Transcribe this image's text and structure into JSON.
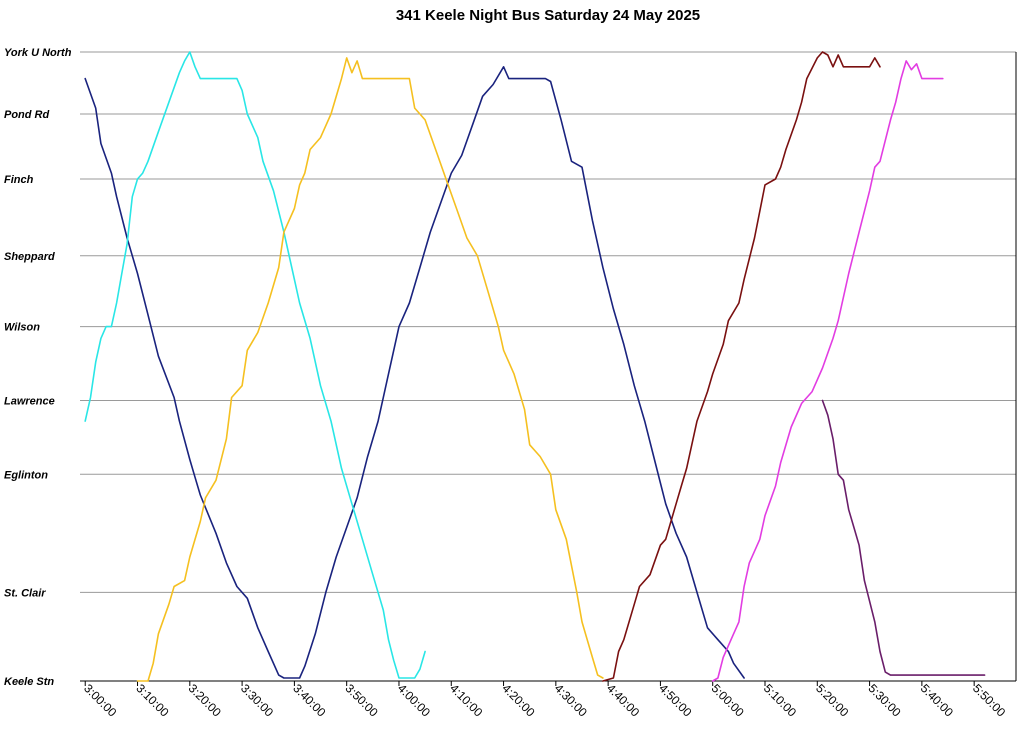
{
  "chart_data": {
    "type": "line",
    "title": "341 Keele Night Bus Saturday 24 May 2025",
    "xlabel": "",
    "ylabel": "",
    "x_unit": "time of day (H:MM:SS)",
    "xlim": [
      "2:59:00",
      "5:58:00"
    ],
    "x_ticks": [
      "3:00:00",
      "3:10:00",
      "3:20:00",
      "3:30:00",
      "3:40:00",
      "3:50:00",
      "4:00:00",
      "4:10:00",
      "4:20:00",
      "4:30:00",
      "4:40:00",
      "4:50:00",
      "5:00:00",
      "5:10:00",
      "5:20:00",
      "5:30:00",
      "5:40:00",
      "5:50:00"
    ],
    "stops": [
      {
        "name": "Keele Stn",
        "pos": 0
      },
      {
        "name": "St. Clair",
        "pos": 1.5
      },
      {
        "name": "Eglinton",
        "pos": 3.5
      },
      {
        "name": "Lawrence",
        "pos": 4.75
      },
      {
        "name": "Wilson",
        "pos": 6
      },
      {
        "name": "Sheppard",
        "pos": 7.2
      },
      {
        "name": "Finch",
        "pos": 8.5
      },
      {
        "name": "Pond Rd",
        "pos": 9.6
      },
      {
        "name": "York U North",
        "pos": 10.65
      }
    ],
    "ylim": [
      0,
      10.65
    ],
    "grid": true,
    "legend": "none",
    "series": [
      {
        "color": "#1a237e",
        "points": [
          [
            "3:00:00",
            10.2
          ],
          [
            "3:02:00",
            9.7
          ],
          [
            "3:03:00",
            9.1
          ],
          [
            "3:05:00",
            8.6
          ],
          [
            "3:06:00",
            8.2
          ],
          [
            "3:08:00",
            7.5
          ],
          [
            "3:10:00",
            6.9
          ],
          [
            "3:12:00",
            6.2
          ],
          [
            "3:14:00",
            5.5
          ],
          [
            "3:17:00",
            4.8
          ],
          [
            "3:18:00",
            4.4
          ],
          [
            "3:20:00",
            3.75
          ],
          [
            "3:21:00",
            3.45
          ],
          [
            "3:22:00",
            3.15
          ],
          [
            "3:25:00",
            2.5
          ],
          [
            "3:27:00",
            2.0
          ],
          [
            "3:29:00",
            1.6
          ],
          [
            "3:31:00",
            1.4
          ],
          [
            "3:33:00",
            0.9
          ],
          [
            "3:35:00",
            0.5
          ],
          [
            "3:37:00",
            0.1
          ],
          [
            "3:38:00",
            0.05
          ],
          [
            "3:41:00",
            0.05
          ],
          [
            "3:42:00",
            0.25
          ],
          [
            "3:44:00",
            0.8
          ],
          [
            "3:46:00",
            1.5
          ],
          [
            "3:48:00",
            2.1
          ],
          [
            "3:50:00",
            2.6
          ],
          [
            "3:52:00",
            3.1
          ],
          [
            "3:54:00",
            3.8
          ],
          [
            "3:56:00",
            4.4
          ],
          [
            "3:58:00",
            5.2
          ],
          [
            "4:00:00",
            6.0
          ],
          [
            "4:02:00",
            6.4
          ],
          [
            "4:04:00",
            7.0
          ],
          [
            "4:06:00",
            7.6
          ],
          [
            "4:08:00",
            8.1
          ],
          [
            "4:10:00",
            8.6
          ],
          [
            "4:12:00",
            8.9
          ],
          [
            "4:14:00",
            9.4
          ],
          [
            "4:16:00",
            9.9
          ],
          [
            "4:18:00",
            10.1
          ],
          [
            "4:20:00",
            10.4
          ],
          [
            "4:21:00",
            10.2
          ],
          [
            "4:22:00",
            10.2
          ],
          [
            "4:28:00",
            10.2
          ],
          [
            "4:29:00",
            10.15
          ],
          [
            "4:31:00",
            9.5
          ],
          [
            "4:33:00",
            8.8
          ],
          [
            "4:35:00",
            8.7
          ],
          [
            "4:37:00",
            7.8
          ],
          [
            "4:39:00",
            7.0
          ],
          [
            "4:41:00",
            6.3
          ],
          [
            "4:43:00",
            5.7
          ],
          [
            "4:45:00",
            5.0
          ],
          [
            "4:47:00",
            4.4
          ],
          [
            "4:49:00",
            3.7
          ],
          [
            "4:51:00",
            3.0
          ],
          [
            "4:53:00",
            2.5
          ],
          [
            "4:55:00",
            2.1
          ],
          [
            "4:57:00",
            1.5
          ],
          [
            "4:59:00",
            0.9
          ],
          [
            "5:01:00",
            0.7
          ],
          [
            "5:03:00",
            0.5
          ],
          [
            "5:04:00",
            0.3
          ],
          [
            "5:06:00",
            0.05
          ]
        ]
      },
      {
        "color": "#29e6e6",
        "points": [
          [
            "3:00:00",
            4.4
          ],
          [
            "3:01:00",
            4.8
          ],
          [
            "3:02:00",
            5.4
          ],
          [
            "3:03:00",
            5.8
          ],
          [
            "3:04:00",
            6.0
          ],
          [
            "3:05:00",
            6.0
          ],
          [
            "3:06:00",
            6.4
          ],
          [
            "3:07:00",
            6.9
          ],
          [
            "3:08:00",
            7.4
          ],
          [
            "3:09:00",
            8.2
          ],
          [
            "3:10:00",
            8.5
          ],
          [
            "3:11:00",
            8.6
          ],
          [
            "3:12:00",
            8.8
          ],
          [
            "3:14:00",
            9.3
          ],
          [
            "3:16:00",
            9.8
          ],
          [
            "3:18:00",
            10.3
          ],
          [
            "3:19:00",
            10.5
          ],
          [
            "3:20:00",
            10.65
          ],
          [
            "3:21:00",
            10.4
          ],
          [
            "3:22:00",
            10.2
          ],
          [
            "3:29:00",
            10.2
          ],
          [
            "3:30:00",
            10.0
          ],
          [
            "3:31:00",
            9.6
          ],
          [
            "3:33:00",
            9.2
          ],
          [
            "3:34:00",
            8.8
          ],
          [
            "3:36:00",
            8.3
          ],
          [
            "3:38:00",
            7.6
          ],
          [
            "3:40:00",
            6.8
          ],
          [
            "3:41:00",
            6.4
          ],
          [
            "3:43:00",
            5.8
          ],
          [
            "3:45:00",
            5.0
          ],
          [
            "3:47:00",
            4.4
          ],
          [
            "3:49:00",
            3.6
          ],
          [
            "3:51:00",
            3.0
          ],
          [
            "3:53:00",
            2.4
          ],
          [
            "3:55:00",
            1.8
          ],
          [
            "3:57:00",
            1.2
          ],
          [
            "3:58:00",
            0.7
          ],
          [
            "3:59:00",
            0.35
          ],
          [
            "4:00:00",
            0.05
          ],
          [
            "4:03:00",
            0.05
          ],
          [
            "4:04:00",
            0.2
          ],
          [
            "4:05:00",
            0.5
          ]
        ]
      },
      {
        "color": "#f5c020",
        "points": [
          [
            "3:10:00",
            0.0
          ],
          [
            "3:12:00",
            0.0
          ],
          [
            "3:13:00",
            0.3
          ],
          [
            "3:14:00",
            0.8
          ],
          [
            "3:16:00",
            1.3
          ],
          [
            "3:17:00",
            1.6
          ],
          [
            "3:19:00",
            1.7
          ],
          [
            "3:20:00",
            2.1
          ],
          [
            "3:22:00",
            2.7
          ],
          [
            "3:23:00",
            3.1
          ],
          [
            "3:25:00",
            3.4
          ],
          [
            "3:27:00",
            4.1
          ],
          [
            "3:28:00",
            4.8
          ],
          [
            "3:30:00",
            5.0
          ],
          [
            "3:31:00",
            5.6
          ],
          [
            "3:33:00",
            5.9
          ],
          [
            "3:35:00",
            6.4
          ],
          [
            "3:37:00",
            7.0
          ],
          [
            "3:38:00",
            7.6
          ],
          [
            "3:40:00",
            8.0
          ],
          [
            "3:41:00",
            8.4
          ],
          [
            "3:42:00",
            8.6
          ],
          [
            "3:43:00",
            9.0
          ],
          [
            "3:45:00",
            9.2
          ],
          [
            "3:47:00",
            9.6
          ],
          [
            "3:49:00",
            10.2
          ],
          [
            "3:50:00",
            10.55
          ],
          [
            "3:51:00",
            10.3
          ],
          [
            "3:52:00",
            10.5
          ],
          [
            "3:53:00",
            10.2
          ],
          [
            "4:02:00",
            10.2
          ],
          [
            "4:03:00",
            9.7
          ],
          [
            "4:05:00",
            9.5
          ],
          [
            "4:07:00",
            9.0
          ],
          [
            "4:09:00",
            8.5
          ],
          [
            "4:11:00",
            8.0
          ],
          [
            "4:13:00",
            7.5
          ],
          [
            "4:15:00",
            7.2
          ],
          [
            "4:17:00",
            6.6
          ],
          [
            "4:19:00",
            6.0
          ],
          [
            "4:20:00",
            5.6
          ],
          [
            "4:22:00",
            5.2
          ],
          [
            "4:24:00",
            4.6
          ],
          [
            "4:25:00",
            4.0
          ],
          [
            "4:27:00",
            3.8
          ],
          [
            "4:29:00",
            3.5
          ],
          [
            "4:30:00",
            2.9
          ],
          [
            "4:32:00",
            2.4
          ],
          [
            "4:34:00",
            1.5
          ],
          [
            "4:35:00",
            1.0
          ],
          [
            "4:37:00",
            0.4
          ],
          [
            "4:38:00",
            0.1
          ],
          [
            "4:39:00",
            0.05
          ]
        ]
      },
      {
        "color": "#7a1010",
        "points": [
          [
            "4:39:00",
            0.0
          ],
          [
            "4:41:00",
            0.05
          ],
          [
            "4:42:00",
            0.5
          ],
          [
            "4:43:00",
            0.7
          ],
          [
            "4:45:00",
            1.3
          ],
          [
            "4:46:00",
            1.6
          ],
          [
            "4:48:00",
            1.8
          ],
          [
            "4:50:00",
            2.3
          ],
          [
            "4:51:00",
            2.4
          ],
          [
            "4:53:00",
            3.0
          ],
          [
            "4:54:00",
            3.3
          ],
          [
            "4:55:00",
            3.6
          ],
          [
            "4:57:00",
            4.4
          ],
          [
            "4:59:00",
            4.9
          ],
          [
            "5:00:00",
            5.2
          ],
          [
            "5:02:00",
            5.7
          ],
          [
            "5:03:00",
            6.1
          ],
          [
            "5:05:00",
            6.4
          ],
          [
            "5:06:00",
            6.8
          ],
          [
            "5:08:00",
            7.5
          ],
          [
            "5:10:00",
            8.4
          ],
          [
            "5:12:00",
            8.5
          ],
          [
            "5:13:00",
            8.7
          ],
          [
            "5:14:00",
            9.0
          ],
          [
            "5:16:00",
            9.5
          ],
          [
            "5:17:00",
            9.8
          ],
          [
            "5:18:00",
            10.2
          ],
          [
            "5:20:00",
            10.55
          ],
          [
            "5:21:00",
            10.65
          ],
          [
            "5:22:00",
            10.6
          ],
          [
            "5:23:00",
            10.4
          ],
          [
            "5:24:00",
            10.6
          ],
          [
            "5:25:00",
            10.4
          ],
          [
            "5:30:00",
            10.4
          ],
          [
            "5:31:00",
            10.55
          ],
          [
            "5:32:00",
            10.4
          ]
        ]
      },
      {
        "color": "#e23de2",
        "points": [
          [
            "5:00:00",
            0.0
          ],
          [
            "5:01:00",
            0.05
          ],
          [
            "5:02:00",
            0.4
          ],
          [
            "5:04:00",
            0.8
          ],
          [
            "5:05:00",
            1.0
          ],
          [
            "5:06:00",
            1.6
          ],
          [
            "5:07:00",
            2.0
          ],
          [
            "5:09:00",
            2.4
          ],
          [
            "5:10:00",
            2.8
          ],
          [
            "5:12:00",
            3.3
          ],
          [
            "5:13:00",
            3.7
          ],
          [
            "5:15:00",
            4.3
          ],
          [
            "5:17:00",
            4.7
          ],
          [
            "5:19:00",
            4.9
          ],
          [
            "5:21:00",
            5.3
          ],
          [
            "5:23:00",
            5.8
          ],
          [
            "5:24:00",
            6.1
          ],
          [
            "5:26:00",
            6.9
          ],
          [
            "5:28:00",
            7.6
          ],
          [
            "5:30:00",
            8.3
          ],
          [
            "5:31:00",
            8.7
          ],
          [
            "5:32:00",
            8.8
          ],
          [
            "5:34:00",
            9.5
          ],
          [
            "5:35:00",
            9.8
          ],
          [
            "5:36:00",
            10.2
          ],
          [
            "5:37:00",
            10.5
          ],
          [
            "5:38:00",
            10.35
          ],
          [
            "5:39:00",
            10.45
          ],
          [
            "5:40:00",
            10.2
          ],
          [
            "5:44:00",
            10.2
          ]
        ]
      },
      {
        "color": "#6a1e6a",
        "points": [
          [
            "5:21:00",
            4.75
          ],
          [
            "5:22:00",
            4.5
          ],
          [
            "5:23:00",
            4.1
          ],
          [
            "5:24:00",
            3.5
          ],
          [
            "5:25:00",
            3.4
          ],
          [
            "5:26:00",
            2.9
          ],
          [
            "5:27:00",
            2.6
          ],
          [
            "5:28:00",
            2.3
          ],
          [
            "5:29:00",
            1.7
          ],
          [
            "5:31:00",
            1.0
          ],
          [
            "5:32:00",
            0.5
          ],
          [
            "5:33:00",
            0.15
          ],
          [
            "5:34:00",
            0.1
          ],
          [
            "5:52:00",
            0.1
          ]
        ]
      }
    ]
  }
}
